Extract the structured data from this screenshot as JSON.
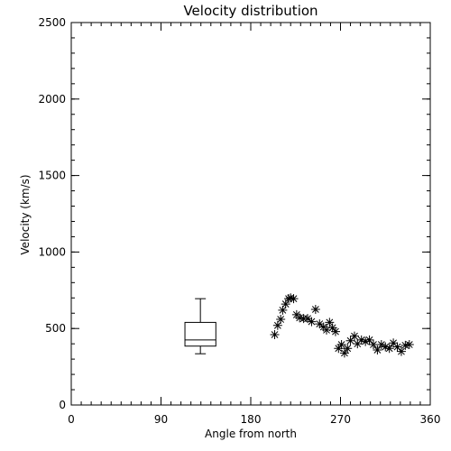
{
  "chart_data": {
    "type": "scatter",
    "title": "Velocity distribution",
    "xlabel": "Angle from north",
    "ylabel": "Velocity (km/s)",
    "xlim": [
      0,
      360
    ],
    "ylim": [
      0,
      2500
    ],
    "xticks": [
      0,
      90,
      180,
      270,
      360
    ],
    "yticks": [
      0,
      500,
      1000,
      1500,
      2000,
      2500
    ],
    "x_minor_step": 10,
    "y_minor_step": 100,
    "grid": false,
    "marker": "asterisk",
    "points": [
      {
        "x": 204,
        "y": 460
      },
      {
        "x": 207,
        "y": 520
      },
      {
        "x": 210,
        "y": 560
      },
      {
        "x": 212,
        "y": 620
      },
      {
        "x": 215,
        "y": 660
      },
      {
        "x": 218,
        "y": 695
      },
      {
        "x": 220,
        "y": 700
      },
      {
        "x": 223,
        "y": 695
      },
      {
        "x": 226,
        "y": 590
      },
      {
        "x": 229,
        "y": 570
      },
      {
        "x": 233,
        "y": 565
      },
      {
        "x": 237,
        "y": 565
      },
      {
        "x": 241,
        "y": 545
      },
      {
        "x": 245,
        "y": 625
      },
      {
        "x": 249,
        "y": 530
      },
      {
        "x": 253,
        "y": 510
      },
      {
        "x": 256,
        "y": 490
      },
      {
        "x": 259,
        "y": 540
      },
      {
        "x": 262,
        "y": 505
      },
      {
        "x": 265,
        "y": 480
      },
      {
        "x": 268,
        "y": 370
      },
      {
        "x": 271,
        "y": 395
      },
      {
        "x": 274,
        "y": 340
      },
      {
        "x": 277,
        "y": 370
      },
      {
        "x": 280,
        "y": 420
      },
      {
        "x": 284,
        "y": 450
      },
      {
        "x": 287,
        "y": 400
      },
      {
        "x": 291,
        "y": 425
      },
      {
        "x": 295,
        "y": 415
      },
      {
        "x": 299,
        "y": 425
      },
      {
        "x": 303,
        "y": 395
      },
      {
        "x": 307,
        "y": 360
      },
      {
        "x": 311,
        "y": 395
      },
      {
        "x": 315,
        "y": 380
      },
      {
        "x": 319,
        "y": 370
      },
      {
        "x": 323,
        "y": 405
      },
      {
        "x": 327,
        "y": 380
      },
      {
        "x": 331,
        "y": 350
      },
      {
        "x": 335,
        "y": 390
      },
      {
        "x": 339,
        "y": 395
      }
    ],
    "boxplot": {
      "x_left": 114,
      "x_right": 145,
      "whisker_low": 335,
      "q1": 385,
      "median": 425,
      "q3": 540,
      "whisker_high": 695
    }
  }
}
